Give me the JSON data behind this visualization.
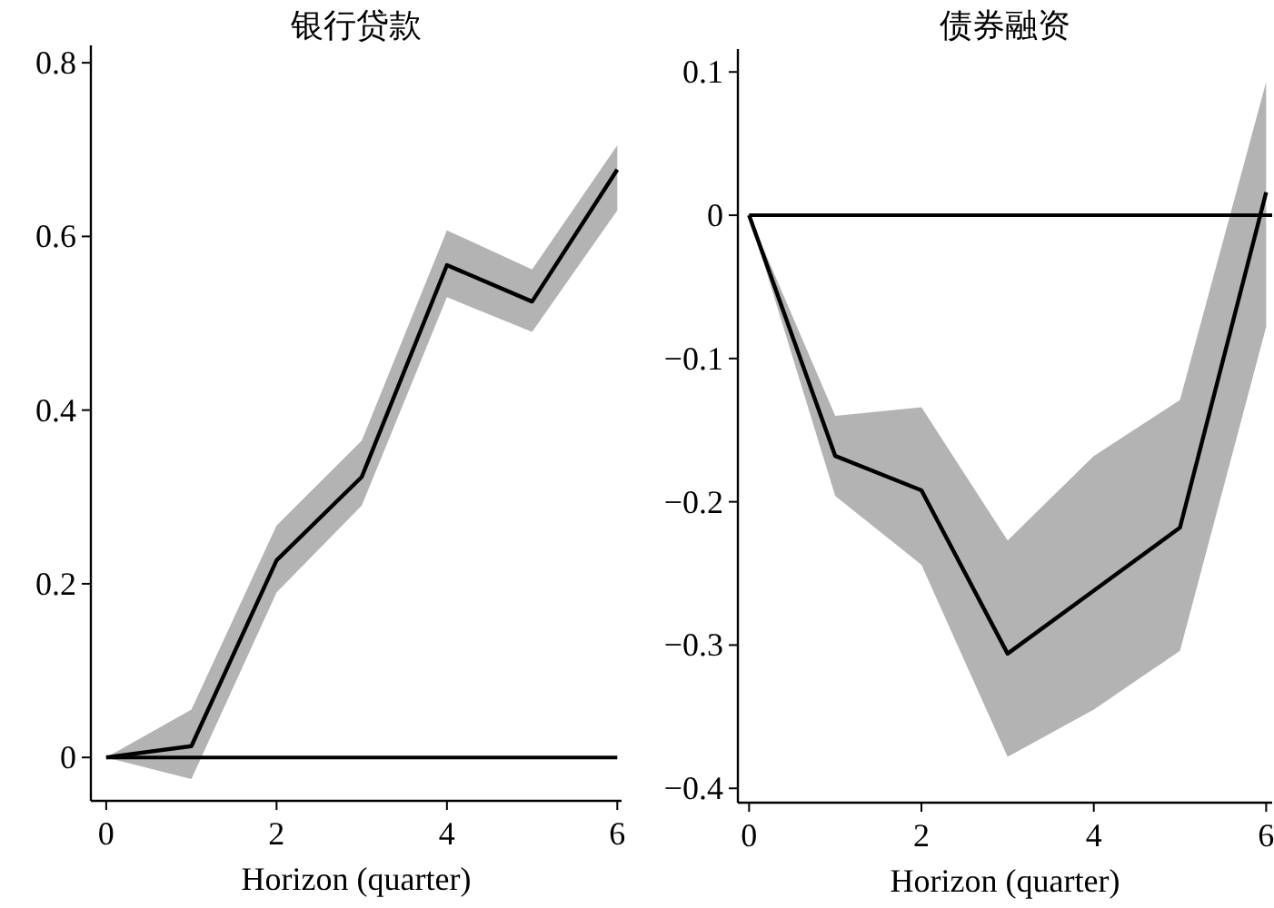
{
  "chart_data": [
    {
      "type": "line",
      "title": "银行贷款",
      "xlabel": "Horizon (quarter)",
      "x": [
        0,
        1,
        2,
        3,
        4,
        5,
        6
      ],
      "series": [
        {
          "color": "#000000",
          "values": [
            0,
            0.013,
            0.227,
            0.323,
            0.567,
            0.525,
            0.677
          ],
          "lower": [
            0,
            -0.025,
            0.19,
            0.29,
            0.53,
            0.49,
            0.63
          ],
          "upper": [
            0,
            0.055,
            0.267,
            0.365,
            0.607,
            0.562,
            0.705
          ]
        }
      ],
      "xlim": [
        -0.18,
        6.05
      ],
      "ylim": [
        -0.05,
        0.82
      ],
      "xticks": [
        0,
        2,
        4,
        6
      ],
      "yticks": [
        0,
        0.2,
        0.4,
        0.6,
        0.8
      ],
      "ref_lines": [
        {
          "axis": "y",
          "value": 0,
          "color": "#000000"
        }
      ],
      "grid": false
    },
    {
      "type": "line",
      "title": "债券融资",
      "xlabel": "Horizon (quarter)",
      "x": [
        0,
        1,
        2,
        3,
        4,
        5,
        6
      ],
      "series": [
        {
          "color": "#000000",
          "values": [
            0,
            -0.168,
            -0.192,
            -0.306,
            -0.262,
            -0.218,
            0.016
          ],
          "lower": [
            0,
            -0.196,
            -0.244,
            -0.378,
            -0.345,
            -0.304,
            -0.078
          ],
          "upper": [
            0,
            -0.14,
            -0.134,
            -0.227,
            -0.168,
            -0.129,
            0.093
          ]
        }
      ],
      "xlim": [
        -0.13,
        6.07
      ],
      "ylim": [
        -0.41,
        0.116
      ],
      "xticks": [
        0,
        2,
        4,
        6
      ],
      "yticks": [
        {
          "value": -0.4,
          "label": "−0.4"
        },
        {
          "value": -0.3,
          "label": "−0.3"
        },
        {
          "value": -0.2,
          "label": "−0.2"
        },
        {
          "value": -0.1,
          "label": "−0.1"
        },
        0,
        0.1
      ],
      "ref_lines": [
        {
          "axis": "y",
          "value": 0,
          "color": "#000000"
        }
      ],
      "grid": false
    }
  ]
}
